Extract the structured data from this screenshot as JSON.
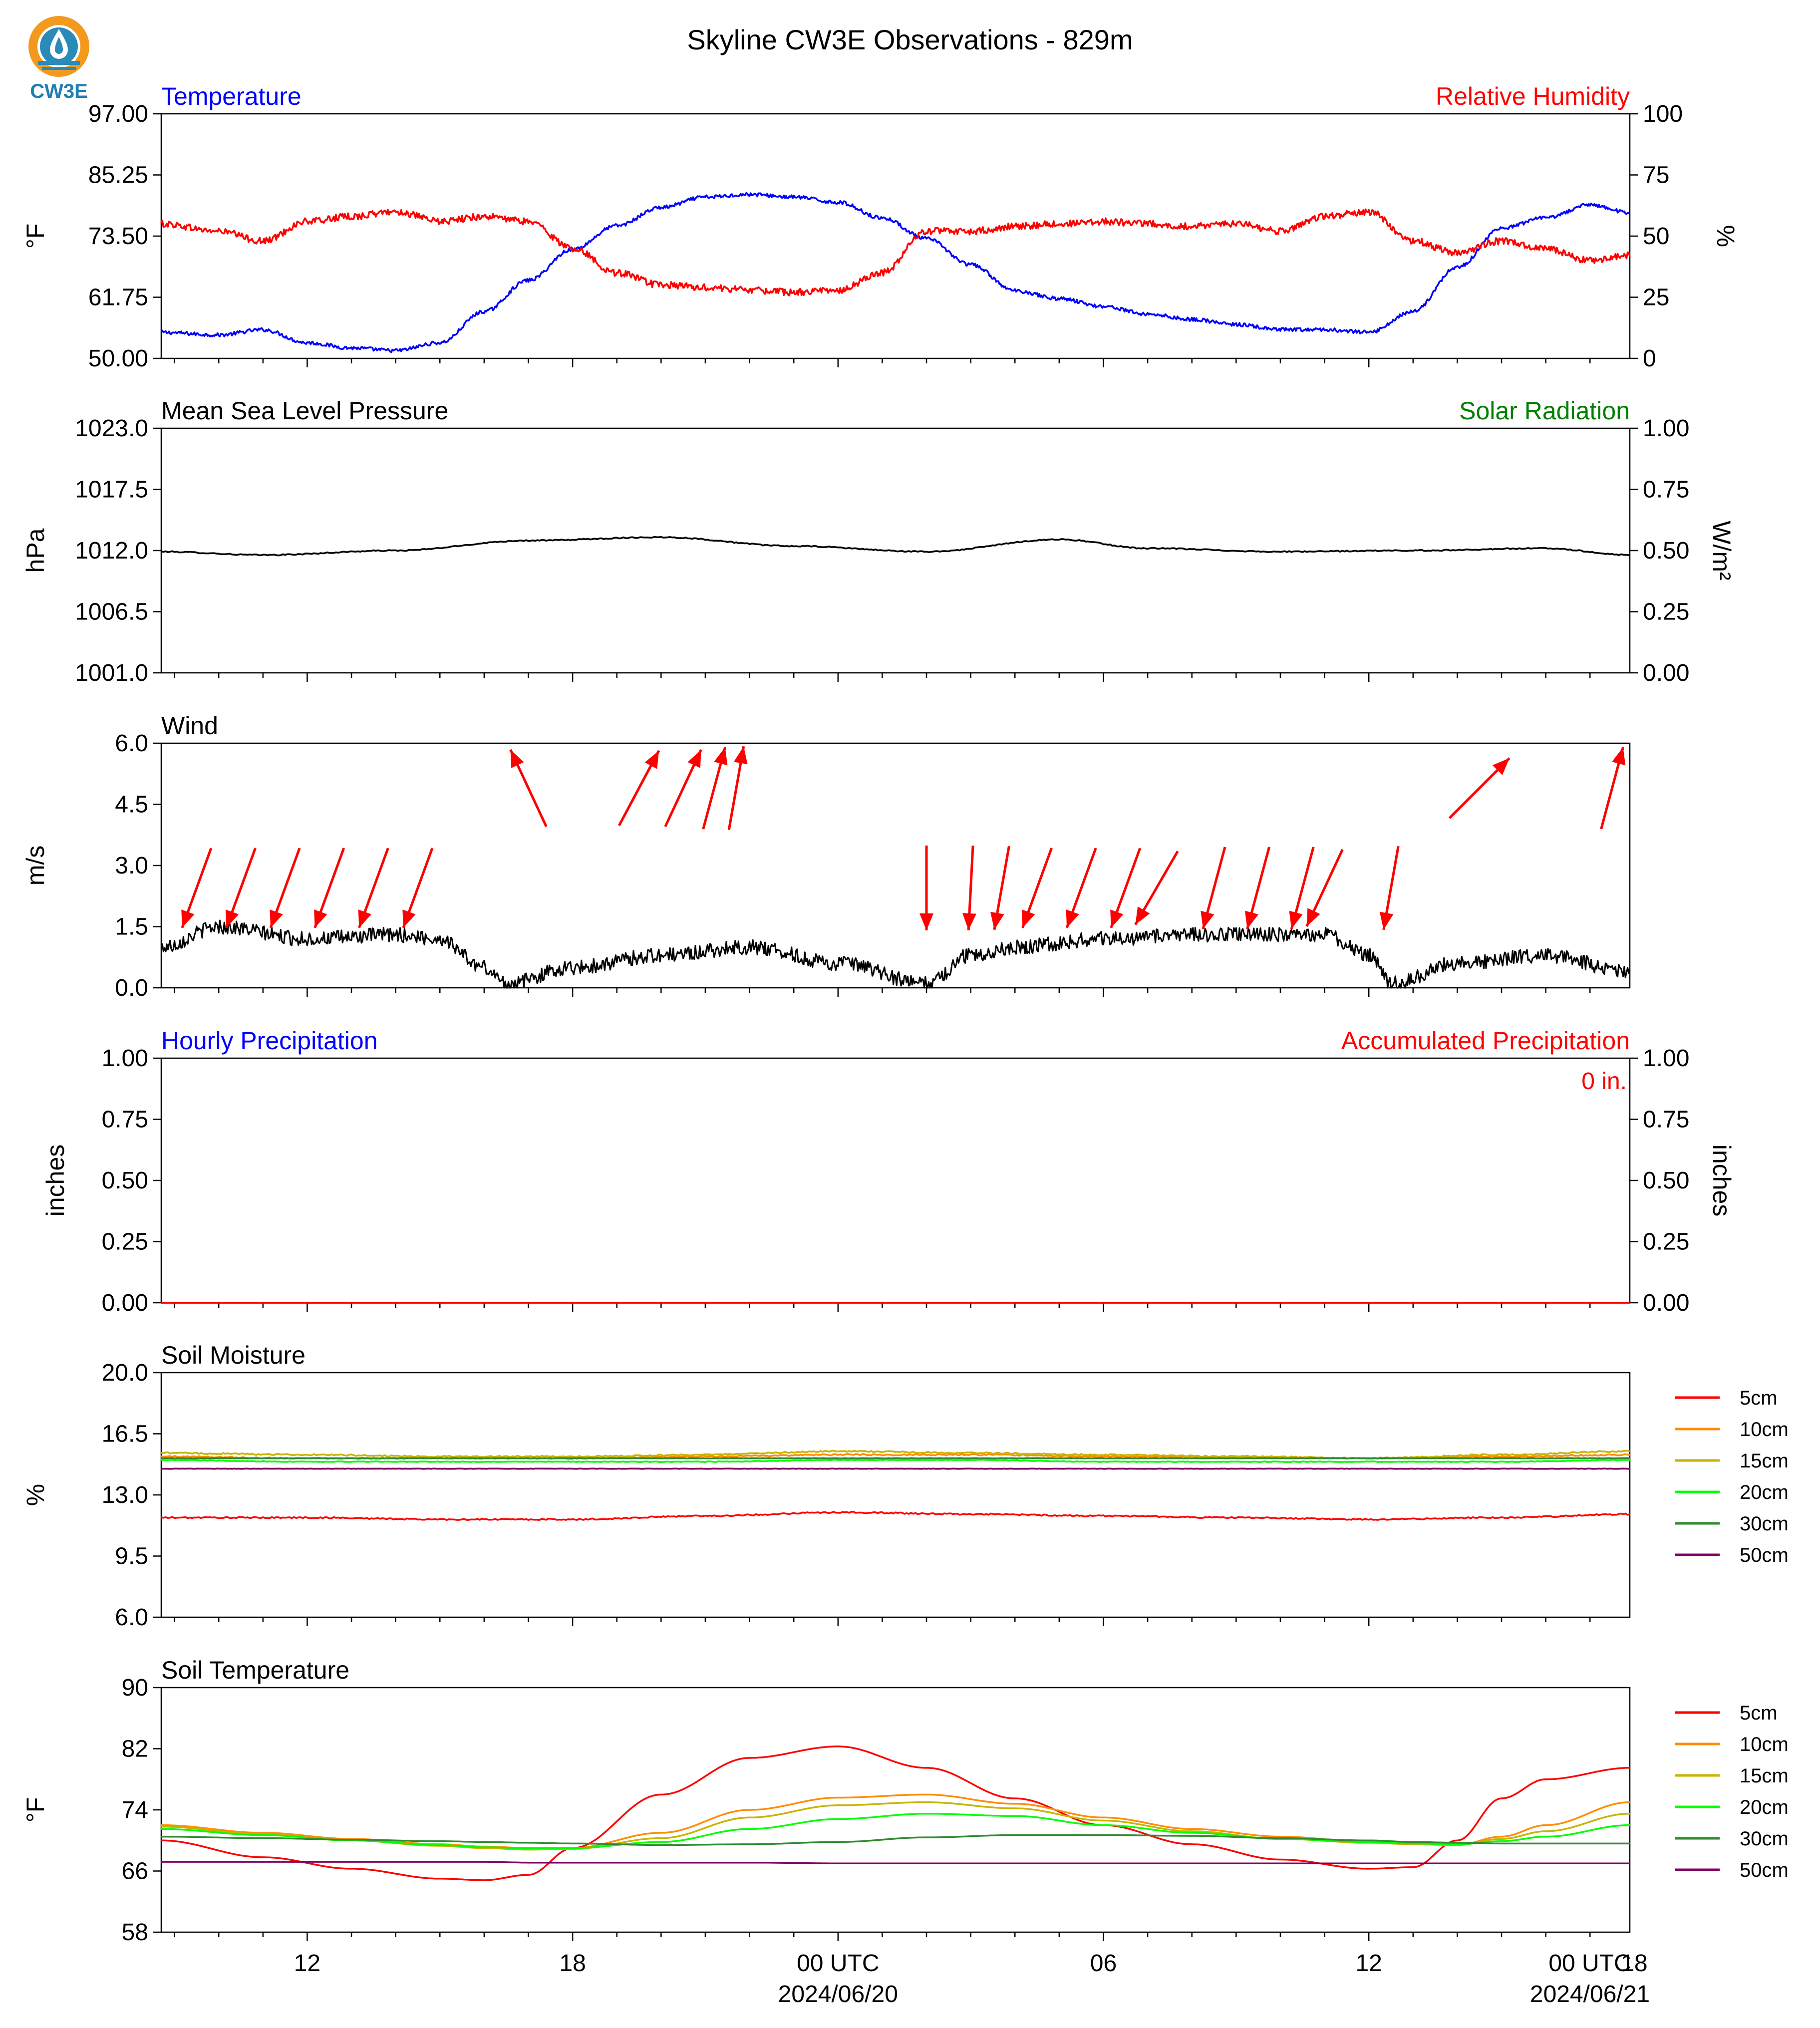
{
  "title": "Skyline CW3E Observations - 829m",
  "logo": {
    "text": "CW3E",
    "icon": "cw3e-logo-icon",
    "colors": {
      "ring": "#F39A1E",
      "drop": "#2A8AB8",
      "text": "#1E7FB0"
    }
  },
  "time_axis": {
    "hours": [
      "12",
      "18",
      "00 UTC",
      "06",
      "12",
      "18",
      "00 UTC"
    ],
    "dates": [
      "2024/06/20",
      "2024/06/21"
    ]
  },
  "chart_data": [
    {
      "type": "line",
      "left_title": "Temperature",
      "right_title": "Relative Humidity",
      "ylabel": "°F",
      "ylabel_right": "%",
      "ylim": [
        50,
        97
      ],
      "ylim_right": [
        0,
        100
      ],
      "yticks": [
        "97.00",
        "85.25",
        "73.50",
        "61.75",
        "50.00"
      ],
      "yticks_right": [
        "100",
        "75",
        "50",
        "25",
        "0"
      ],
      "x": [
        8.7,
        10,
        11,
        12,
        13,
        14,
        15,
        16,
        17,
        18,
        19,
        20,
        21,
        22,
        23,
        24,
        25,
        26,
        27,
        28,
        29,
        30,
        31,
        32,
        33,
        34,
        35,
        36,
        37,
        38,
        39,
        40,
        41,
        41.9
      ],
      "series": [
        {
          "name": "Temperature",
          "color": "#0000ff",
          "axis": "left",
          "values": [
            55.0,
            54.5,
            55.5,
            53.0,
            52.0,
            51.5,
            53.0,
            59.0,
            65.0,
            71.0,
            75.5,
            79.0,
            81.0,
            81.5,
            81.0,
            80.0,
            77.0,
            73.0,
            68.0,
            63.0,
            61.5,
            60.0,
            58.5,
            57.5,
            56.5,
            55.5,
            55.5,
            55.0,
            59.0,
            67.5,
            75.0,
            77.0,
            79.5,
            78.0
          ]
        },
        {
          "name": "Relative Humidity",
          "color": "#ff0000",
          "axis": "right",
          "values": [
            55.0,
            52.0,
            48.0,
            56.0,
            58.0,
            60.0,
            56.0,
            58.0,
            56.0,
            45.0,
            35.0,
            30.0,
            29.0,
            28.0,
            27.0,
            28.0,
            35.0,
            52.0,
            52.0,
            54.0,
            55.0,
            56.0,
            55.0,
            54.0,
            55.0,
            52.0,
            58.0,
            60.0,
            48.0,
            43.0,
            48.0,
            45.0,
            40.0,
            42.0
          ]
        }
      ]
    },
    {
      "type": "line",
      "left_title": "Mean Sea Level Pressure",
      "right_title": "Solar Radiation",
      "ylabel": "hPa",
      "ylabel_right": "W/m²",
      "ylim": [
        1001,
        1023
      ],
      "ylim_right": [
        0,
        1
      ],
      "yticks": [
        "1023.0",
        "1017.5",
        "1012.0",
        "1006.5",
        "1001.0"
      ],
      "yticks_right": [
        "1.00",
        "0.75",
        "0.50",
        "0.25",
        "0.00"
      ],
      "x": [
        8.7,
        11,
        14,
        17,
        20,
        23,
        26,
        29,
        31,
        34,
        37,
        40,
        41.9
      ],
      "series": [
        {
          "name": "MSLP",
          "color": "#000000",
          "axis": "left",
          "values": [
            1011.9,
            1011.6,
            1012.0,
            1012.9,
            1013.2,
            1012.4,
            1011.9,
            1013.0,
            1012.2,
            1011.9,
            1012.0,
            1012.2,
            1011.6
          ]
        }
      ]
    },
    {
      "type": "line",
      "left_title": "Wind",
      "ylabel": "m/s",
      "ylim": [
        0,
        6
      ],
      "yticks": [
        "6.0",
        "4.5",
        "3.0",
        "1.5",
        "0.0"
      ],
      "x": [
        8.7,
        10,
        12,
        14,
        15,
        16,
        16.5,
        18,
        20,
        22,
        24,
        26,
        27,
        28,
        30,
        32,
        34,
        35,
        36,
        36.5,
        38,
        40,
        41.9
      ],
      "series": [
        {
          "name": "Wind speed",
          "color": "#000000",
          "axis": "left",
          "values": [
            1.0,
            1.5,
            1.2,
            1.3,
            1.2,
            0.5,
            0.1,
            0.5,
            0.8,
            1.0,
            0.6,
            0.1,
            0.8,
            1.0,
            1.2,
            1.3,
            1.3,
            1.3,
            0.8,
            0.1,
            0.6,
            0.8,
            0.4
          ]
        }
      ],
      "wind_arrows": {
        "color": "#ff0000",
        "low": [
          {
            "x": 9.5,
            "dir": 200
          },
          {
            "x": 10.5,
            "dir": 200
          },
          {
            "x": 11.5,
            "dir": 200
          },
          {
            "x": 12.5,
            "dir": 200
          },
          {
            "x": 13.5,
            "dir": 200
          },
          {
            "x": 14.5,
            "dir": 200
          },
          {
            "x": 26.0,
            "dir": 180
          },
          {
            "x": 27.0,
            "dir": 183
          },
          {
            "x": 27.7,
            "dir": 190
          },
          {
            "x": 28.5,
            "dir": 200
          },
          {
            "x": 29.5,
            "dir": 200
          },
          {
            "x": 30.5,
            "dir": 200
          },
          {
            "x": 31.2,
            "dir": 210
          },
          {
            "x": 32.5,
            "dir": 195
          },
          {
            "x": 33.5,
            "dir": 195
          },
          {
            "x": 34.5,
            "dir": 195
          },
          {
            "x": 35.0,
            "dir": 205
          },
          {
            "x": 36.5,
            "dir": 190
          }
        ],
        "high": [
          {
            "x": 17.0,
            "dir": 335
          },
          {
            "x": 19.5,
            "dir": 28
          },
          {
            "x": 20.5,
            "dir": 25
          },
          {
            "x": 21.2,
            "dir": 15
          },
          {
            "x": 21.7,
            "dir": 10
          },
          {
            "x": 38.5,
            "dir": 45
          },
          {
            "x": 41.5,
            "dir": 15
          }
        ]
      }
    },
    {
      "type": "line",
      "left_title": "Hourly Precipitation",
      "right_title": "Accumulated Precipitation",
      "ylabel": "inches",
      "ylabel_right": "inches",
      "ylim": [
        0,
        1
      ],
      "ylim_right": [
        0,
        1
      ],
      "yticks": [
        "1.00",
        "0.75",
        "0.50",
        "0.25",
        "0.00"
      ],
      "yticks_right": [
        "1.00",
        "0.75",
        "0.50",
        "0.25",
        "0.00"
      ],
      "annotation": "0 in.",
      "x": [
        8.7,
        41.9
      ],
      "series": [
        {
          "name": "Hourly Precipitation",
          "color": "#0000ff",
          "axis": "left",
          "values": [
            0,
            0
          ]
        },
        {
          "name": "Accumulated Precipitation",
          "color": "#ff0000",
          "axis": "right",
          "values": [
            0,
            0
          ]
        }
      ]
    },
    {
      "type": "line",
      "left_title": "Soil Moisture",
      "ylabel": "%",
      "ylim": [
        6,
        20
      ],
      "yticks": [
        "20.0",
        "16.5",
        "13.0",
        "9.5",
        "6.0"
      ],
      "legend_position": "right",
      "x": [
        8.7,
        12,
        15,
        18,
        21,
        24,
        27,
        30,
        33,
        36,
        39,
        41.9
      ],
      "series": [
        {
          "name": "5cm",
          "color": "#ff0000",
          "values": [
            11.7,
            11.7,
            11.6,
            11.6,
            11.8,
            12.0,
            11.9,
            11.8,
            11.7,
            11.6,
            11.7,
            11.9
          ]
        },
        {
          "name": "10cm",
          "color": "#ff8c00",
          "values": [
            15.2,
            15.1,
            15.1,
            15.1,
            15.2,
            15.3,
            15.3,
            15.2,
            15.2,
            15.1,
            15.2,
            15.3
          ]
        },
        {
          "name": "15cm",
          "color": "#c8b400",
          "values": [
            15.4,
            15.3,
            15.2,
            15.2,
            15.3,
            15.5,
            15.4,
            15.3,
            15.2,
            15.1,
            15.3,
            15.5
          ]
        },
        {
          "name": "20cm",
          "color": "#00ff00",
          "values": [
            15.0,
            14.9,
            14.9,
            14.9,
            14.9,
            15.0,
            15.0,
            14.9,
            14.9,
            14.9,
            14.9,
            15.0
          ]
        },
        {
          "name": "30cm",
          "color": "#2e8b2e",
          "values": [
            15.1,
            15.1,
            15.1,
            15.1,
            15.1,
            15.1,
            15.1,
            15.1,
            15.1,
            15.1,
            15.1,
            15.1
          ]
        },
        {
          "name": "50cm",
          "color": "#800060",
          "values": [
            14.5,
            14.5,
            14.5,
            14.5,
            14.5,
            14.5,
            14.5,
            14.5,
            14.5,
            14.5,
            14.5,
            14.5
          ]
        }
      ]
    },
    {
      "type": "line",
      "left_title": "Soil Temperature",
      "ylabel": "°F",
      "ylim": [
        58,
        90
      ],
      "yticks": [
        "90",
        "82",
        "74",
        "66",
        "58"
      ],
      "legend_position": "right",
      "x": [
        8.7,
        11,
        13,
        15,
        16,
        17,
        18,
        20,
        22,
        24,
        26,
        28,
        30,
        32,
        34,
        36,
        37,
        38,
        39,
        40,
        41.9
      ],
      "series": [
        {
          "name": "5cm",
          "color": "#ff0000",
          "values": [
            70.0,
            67.8,
            66.3,
            65.0,
            64.8,
            65.5,
            69.0,
            76.0,
            80.8,
            82.3,
            79.5,
            75.5,
            72.0,
            69.5,
            67.5,
            66.3,
            66.5,
            70.0,
            75.5,
            78.0,
            79.5
          ]
        },
        {
          "name": "10cm",
          "color": "#ff8c00",
          "values": [
            72.0,
            71.0,
            70.2,
            69.5,
            69.2,
            69.0,
            69.0,
            71.0,
            74.0,
            75.6,
            76.0,
            74.8,
            73.0,
            71.5,
            70.5,
            69.8,
            69.5,
            69.4,
            70.5,
            72.0,
            75.0
          ]
        },
        {
          "name": "15cm",
          "color": "#c8b400",
          "values": [
            71.8,
            70.8,
            70.0,
            69.3,
            69.0,
            68.8,
            68.9,
            70.3,
            73.0,
            74.6,
            75.0,
            74.2,
            72.6,
            71.2,
            70.2,
            69.7,
            69.5,
            69.4,
            70.2,
            71.2,
            73.5
          ]
        },
        {
          "name": "20cm",
          "color": "#00ff00",
          "values": [
            71.5,
            70.7,
            70.0,
            69.4,
            69.1,
            69.0,
            69.0,
            69.8,
            71.5,
            72.8,
            73.5,
            73.2,
            72.0,
            71.0,
            70.2,
            69.8,
            69.6,
            69.5,
            69.9,
            70.5,
            72.0
          ]
        },
        {
          "name": "30cm",
          "color": "#2e8b2e",
          "values": [
            70.5,
            70.3,
            70.1,
            69.9,
            69.8,
            69.7,
            69.6,
            69.4,
            69.5,
            69.8,
            70.4,
            70.7,
            70.7,
            70.6,
            70.3,
            70.0,
            69.8,
            69.7,
            69.6,
            69.6,
            69.6
          ]
        },
        {
          "name": "50cm",
          "color": "#800060",
          "values": [
            67.2,
            67.2,
            67.2,
            67.2,
            67.2,
            67.1,
            67.1,
            67.1,
            67.1,
            67.0,
            67.0,
            67.0,
            67.0,
            67.0,
            67.0,
            67.0,
            67.0,
            67.0,
            67.0,
            67.0,
            67.0
          ]
        }
      ]
    }
  ]
}
